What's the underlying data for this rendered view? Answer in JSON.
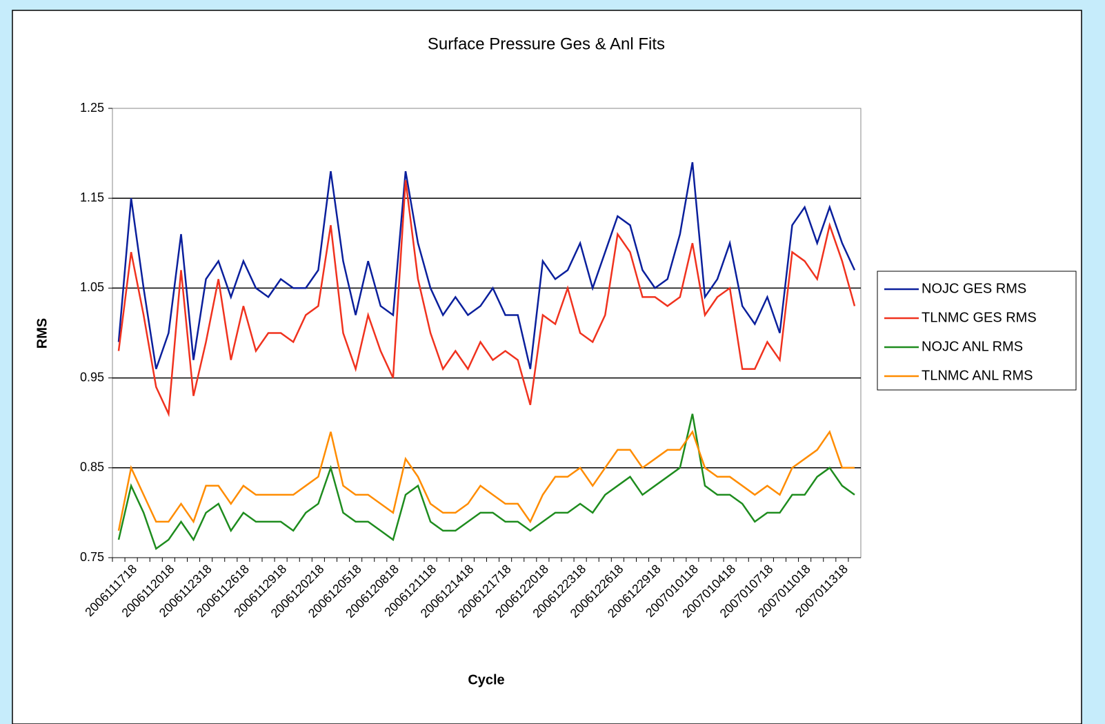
{
  "chart_data": {
    "type": "line",
    "title": "Surface Pressure Ges & Anl Fits",
    "x_label": "Cycle",
    "y_label": "RMS",
    "categories": [
      null,
      "2006111718",
      null,
      null,
      "2006112018",
      null,
      null,
      "2006112318",
      null,
      null,
      "2006112618",
      null,
      null,
      "2006112918",
      null,
      null,
      "2006120218",
      null,
      null,
      "2006120518",
      null,
      null,
      "2006120818",
      null,
      null,
      "2006121118",
      null,
      null,
      "2006121418",
      null,
      null,
      "2006121718",
      null,
      null,
      "2006122018",
      null,
      null,
      "2006122318",
      null,
      null,
      "2006122618",
      null,
      null,
      "2006122918",
      null,
      null,
      "2007010118",
      null,
      null,
      "2007010418",
      null,
      null,
      "2007010718",
      null,
      null,
      "2007011018",
      null,
      null,
      "2007011318",
      null
    ],
    "series": [
      {
        "name": "NOJC GES RMS",
        "color": "#0a1f9c",
        "values": [
          0.99,
          1.15,
          1.05,
          0.96,
          1.0,
          1.11,
          0.97,
          1.06,
          1.08,
          1.04,
          1.08,
          1.05,
          1.04,
          1.06,
          1.05,
          1.05,
          1.07,
          1.18,
          1.08,
          1.02,
          1.08,
          1.03,
          1.02,
          1.18,
          1.1,
          1.05,
          1.02,
          1.04,
          1.02,
          1.03,
          1.05,
          1.02,
          1.02,
          0.96,
          1.08,
          1.06,
          1.07,
          1.1,
          1.05,
          1.09,
          1.13,
          1.12,
          1.07,
          1.05,
          1.06,
          1.11,
          1.19,
          1.04,
          1.06,
          1.1,
          1.03,
          1.01,
          1.04,
          1.0,
          1.12,
          1.14,
          1.1,
          1.14,
          1.1,
          1.07
        ]
      },
      {
        "name": "TLNMC GES RMS",
        "color": "#f0321e",
        "values": [
          0.98,
          1.09,
          1.02,
          0.94,
          0.91,
          1.07,
          0.93,
          0.99,
          1.06,
          0.97,
          1.03,
          0.98,
          1.0,
          1.0,
          0.99,
          1.02,
          1.03,
          1.12,
          1.0,
          0.96,
          1.02,
          0.98,
          0.95,
          1.17,
          1.06,
          1.0,
          0.96,
          0.98,
          0.96,
          0.99,
          0.97,
          0.98,
          0.97,
          0.92,
          1.02,
          1.01,
          1.05,
          1.0,
          0.99,
          1.02,
          1.11,
          1.09,
          1.04,
          1.04,
          1.03,
          1.04,
          1.1,
          1.02,
          1.04,
          1.05,
          0.96,
          0.96,
          0.99,
          0.97,
          1.09,
          1.08,
          1.06,
          1.12,
          1.08,
          1.03
        ]
      },
      {
        "name": "NOJC ANL RMS",
        "color": "#1e8c1e",
        "values": [
          0.77,
          0.83,
          0.8,
          0.76,
          0.77,
          0.79,
          0.77,
          0.8,
          0.81,
          0.78,
          0.8,
          0.79,
          0.79,
          0.79,
          0.78,
          0.8,
          0.81,
          0.85,
          0.8,
          0.79,
          0.79,
          0.78,
          0.77,
          0.82,
          0.83,
          0.79,
          0.78,
          0.78,
          0.79,
          0.8,
          0.8,
          0.79,
          0.79,
          0.78,
          0.79,
          0.8,
          0.8,
          0.81,
          0.8,
          0.82,
          0.83,
          0.84,
          0.82,
          0.83,
          0.84,
          0.85,
          0.91,
          0.83,
          0.82,
          0.82,
          0.81,
          0.79,
          0.8,
          0.8,
          0.82,
          0.82,
          0.84,
          0.85,
          0.83,
          0.82
        ]
      },
      {
        "name": "TLNMC ANL RMS",
        "color": "#ff8c00",
        "values": [
          0.78,
          0.85,
          0.82,
          0.79,
          0.79,
          0.81,
          0.79,
          0.83,
          0.83,
          0.81,
          0.83,
          0.82,
          0.82,
          0.82,
          0.82,
          0.83,
          0.84,
          0.89,
          0.83,
          0.82,
          0.82,
          0.81,
          0.8,
          0.86,
          0.84,
          0.81,
          0.8,
          0.8,
          0.81,
          0.83,
          0.82,
          0.81,
          0.81,
          0.79,
          0.82,
          0.84,
          0.84,
          0.85,
          0.83,
          0.85,
          0.87,
          0.87,
          0.85,
          0.86,
          0.87,
          0.87,
          0.89,
          0.85,
          0.84,
          0.84,
          0.83,
          0.82,
          0.83,
          0.82,
          0.85,
          0.86,
          0.87,
          0.89,
          0.85,
          0.85
        ]
      }
    ],
    "ylim": [
      0.75,
      1.25
    ],
    "yticks": [
      0.75,
      0.85,
      0.95,
      1.05,
      1.15,
      1.25
    ],
    "grid": true,
    "legend": "right"
  }
}
